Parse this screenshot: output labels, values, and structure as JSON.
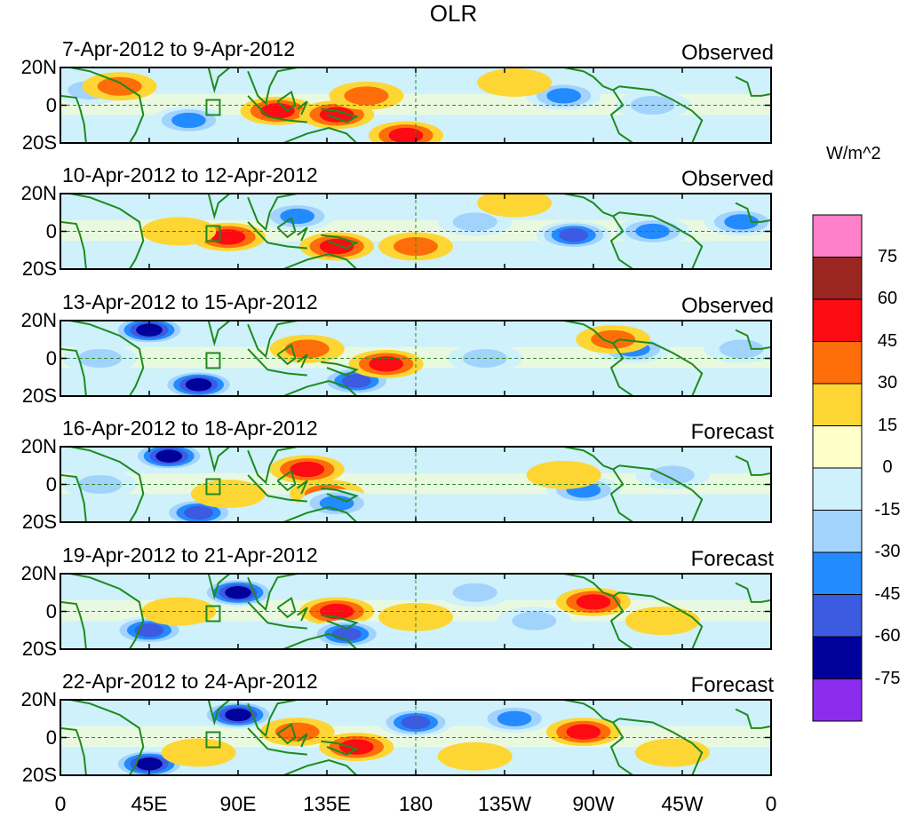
{
  "title": "OLR",
  "units": "W/m^2",
  "chart_data": {
    "type": "heatmap",
    "title": "OLR",
    "variable": "Outgoing Longwave Radiation anomaly",
    "units": "W/m^2",
    "x_ticks": [
      "0",
      "45E",
      "90E",
      "135E",
      "180",
      "135W",
      "90W",
      "45W",
      "0"
    ],
    "x_range_deg": [
      0,
      360
    ],
    "y_ticks": [
      "20N",
      "0",
      "20S"
    ],
    "y_range_deg": [
      -20,
      20
    ],
    "panels": [
      {
        "dates": "7-Apr-2012 to 9-Apr-2012",
        "kind": "Observed",
        "features": [
          {
            "lon": 110,
            "lat": -3,
            "value": 50
          },
          {
            "lon": 140,
            "lat": -5,
            "value": 45
          },
          {
            "lon": 155,
            "lat": 5,
            "value": 40
          },
          {
            "lon": 175,
            "lat": -16,
            "value": 45
          },
          {
            "lon": 65,
            "lat": -8,
            "value": -55
          },
          {
            "lon": 15,
            "lat": 8,
            "value": -30
          },
          {
            "lon": 255,
            "lat": 5,
            "value": -45
          },
          {
            "lon": 300,
            "lat": 0,
            "value": -40
          },
          {
            "lon": 230,
            "lat": 12,
            "value": 20
          },
          {
            "lon": 30,
            "lat": 10,
            "value": 30
          }
        ]
      },
      {
        "dates": "10-Apr-2012 to 12-Apr-2012",
        "kind": "Observed",
        "features": [
          {
            "lon": 85,
            "lat": -3,
            "value": 45
          },
          {
            "lon": 140,
            "lat": -8,
            "value": 45
          },
          {
            "lon": 180,
            "lat": -8,
            "value": 40
          },
          {
            "lon": 120,
            "lat": 8,
            "value": -45
          },
          {
            "lon": 210,
            "lat": 5,
            "value": -40
          },
          {
            "lon": 260,
            "lat": -2,
            "value": -60
          },
          {
            "lon": 300,
            "lat": 0,
            "value": -45
          },
          {
            "lon": 345,
            "lat": 5,
            "value": -50
          },
          {
            "lon": 60,
            "lat": 0,
            "value": 25
          },
          {
            "lon": 230,
            "lat": 15,
            "value": 20
          }
        ]
      },
      {
        "dates": "13-Apr-2012 to 15-Apr-2012",
        "kind": "Observed",
        "features": [
          {
            "lon": 45,
            "lat": 15,
            "value": -80
          },
          {
            "lon": 70,
            "lat": -14,
            "value": -75
          },
          {
            "lon": 150,
            "lat": -12,
            "value": -70
          },
          {
            "lon": 165,
            "lat": -3,
            "value": 45
          },
          {
            "lon": 125,
            "lat": 5,
            "value": 30
          },
          {
            "lon": 215,
            "lat": 0,
            "value": -40
          },
          {
            "lon": 290,
            "lat": 5,
            "value": -45
          },
          {
            "lon": 345,
            "lat": 5,
            "value": -40
          },
          {
            "lon": 280,
            "lat": 10,
            "value": 30
          },
          {
            "lon": 20,
            "lat": 0,
            "value": -30
          }
        ]
      },
      {
        "dates": "16-Apr-2012 to 18-Apr-2012",
        "kind": "Forecast",
        "features": [
          {
            "lon": 55,
            "lat": 15,
            "value": -75
          },
          {
            "lon": 70,
            "lat": -15,
            "value": -70
          },
          {
            "lon": 125,
            "lat": 8,
            "value": 45
          },
          {
            "lon": 135,
            "lat": -5,
            "value": 40
          },
          {
            "lon": 140,
            "lat": -10,
            "value": -55
          },
          {
            "lon": 265,
            "lat": -3,
            "value": -45
          },
          {
            "lon": 310,
            "lat": 5,
            "value": -40
          },
          {
            "lon": 85,
            "lat": -5,
            "value": 25
          },
          {
            "lon": 255,
            "lat": 5,
            "value": 20
          },
          {
            "lon": 20,
            "lat": 0,
            "value": -30
          }
        ]
      },
      {
        "dates": "19-Apr-2012 to 21-Apr-2012",
        "kind": "Forecast",
        "features": [
          {
            "lon": 90,
            "lat": 10,
            "value": -75
          },
          {
            "lon": 45,
            "lat": -10,
            "value": -70
          },
          {
            "lon": 140,
            "lat": 0,
            "value": 50
          },
          {
            "lon": 145,
            "lat": -12,
            "value": -60
          },
          {
            "lon": 270,
            "lat": 5,
            "value": 50
          },
          {
            "lon": 210,
            "lat": 10,
            "value": -40
          },
          {
            "lon": 305,
            "lat": -5,
            "value": 20
          },
          {
            "lon": 60,
            "lat": 0,
            "value": 20
          },
          {
            "lon": 180,
            "lat": -3,
            "value": 25
          },
          {
            "lon": 240,
            "lat": -5,
            "value": -30
          }
        ]
      },
      {
        "dates": "22-Apr-2012 to 24-Apr-2012",
        "kind": "Forecast",
        "features": [
          {
            "lon": 90,
            "lat": 12,
            "value": -80
          },
          {
            "lon": 45,
            "lat": -14,
            "value": -75
          },
          {
            "lon": 150,
            "lat": -5,
            "value": 50
          },
          {
            "lon": 120,
            "lat": 3,
            "value": 35
          },
          {
            "lon": 180,
            "lat": 8,
            "value": -60
          },
          {
            "lon": 265,
            "lat": 3,
            "value": 45
          },
          {
            "lon": 230,
            "lat": 10,
            "value": -45
          },
          {
            "lon": 70,
            "lat": -8,
            "value": 25
          },
          {
            "lon": 310,
            "lat": -8,
            "value": 20
          },
          {
            "lon": 210,
            "lat": -10,
            "value": 20
          }
        ]
      }
    ],
    "colorbar": {
      "labels": [
        "75",
        "60",
        "45",
        "30",
        "15",
        "0",
        "-15",
        "-30",
        "-45",
        "-60",
        "-75"
      ],
      "colors": [
        "#ff7fc8",
        "#9b2621",
        "#fc0b12",
        "#fd6e0a",
        "#fed633",
        "#ffffca",
        "#cef1fb",
        "#a2d3fd",
        "#238bff",
        "#3c5be0",
        "#00009b",
        "#8c2dee"
      ]
    }
  }
}
